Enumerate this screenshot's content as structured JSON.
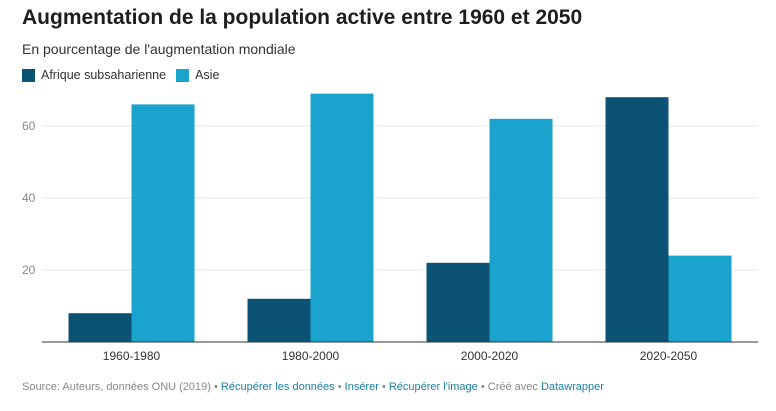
{
  "title": "Augmentation de la population active entre 1960 et 2050",
  "subtitle": "En pourcentage de l'augmentation mondiale",
  "colors": {
    "afrique": "#0c5275",
    "asie": "#1aa3cc",
    "grid": "#e6e6e6",
    "axis": "#333333",
    "tick": "#888888"
  },
  "chart_data": {
    "type": "bar",
    "categories": [
      "1960-1980",
      "1980-2000",
      "2000-2020",
      "2020-2050"
    ],
    "series": [
      {
        "name": "Afrique subsaharienne",
        "values": [
          8,
          12,
          22,
          68
        ]
      },
      {
        "name": "Asie",
        "values": [
          66,
          69,
          62,
          24
        ]
      }
    ],
    "yticks": [
      "20",
      "40",
      "60"
    ],
    "ylim": [
      0,
      70
    ],
    "grid": true,
    "legend": "top-left"
  },
  "footer": {
    "source": "Source: Auteurs, données ONU (2019)",
    "sep": " • ",
    "link_data": "Récupérer les données",
    "link_embed": "Insérer",
    "link_image": "Récupérer l'image",
    "created_with": "Créé avec",
    "link_tool": "Datawrapper"
  }
}
